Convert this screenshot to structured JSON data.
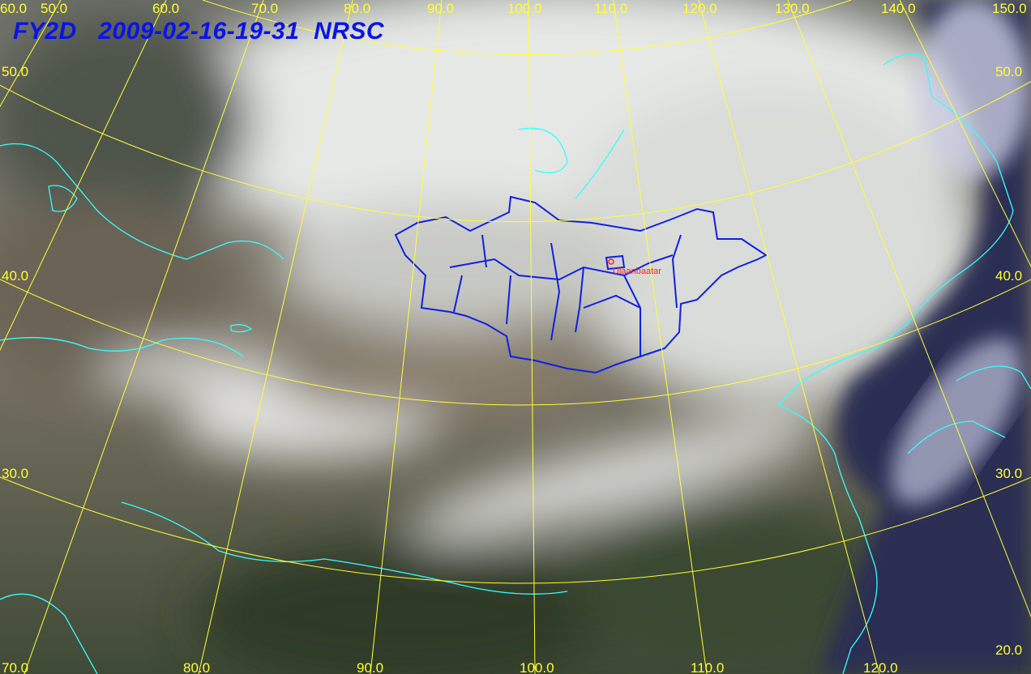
{
  "title": {
    "satellite": "FY2D",
    "timestamp": "2009-02-16-19-31",
    "agency": "NRSC"
  },
  "graticule": {
    "top_longitude_labels": [
      "50.0",
      "60.0",
      "70.0",
      "80.0",
      "90.0",
      "100.0",
      "110.0",
      "120.0",
      "130.0",
      "140.0",
      "150.0"
    ],
    "bottom_longitude_labels": [
      "70.0",
      "80.0",
      "90.0",
      "100.0",
      "110.0",
      "120.0"
    ],
    "left_latitude_labels": [
      "60.0",
      "50.0",
      "40.0",
      "30.0"
    ],
    "right_latitude_labels": [
      "50.0",
      "40.0",
      "30.0",
      "20.0"
    ]
  },
  "city": {
    "name": "Ulaanbaatar"
  },
  "colors": {
    "title": "#0a14e6",
    "graticule": "#ffff33",
    "coastline": "#33ffff",
    "mongolia_borders": "#1020e0",
    "city": "#ff2020"
  }
}
